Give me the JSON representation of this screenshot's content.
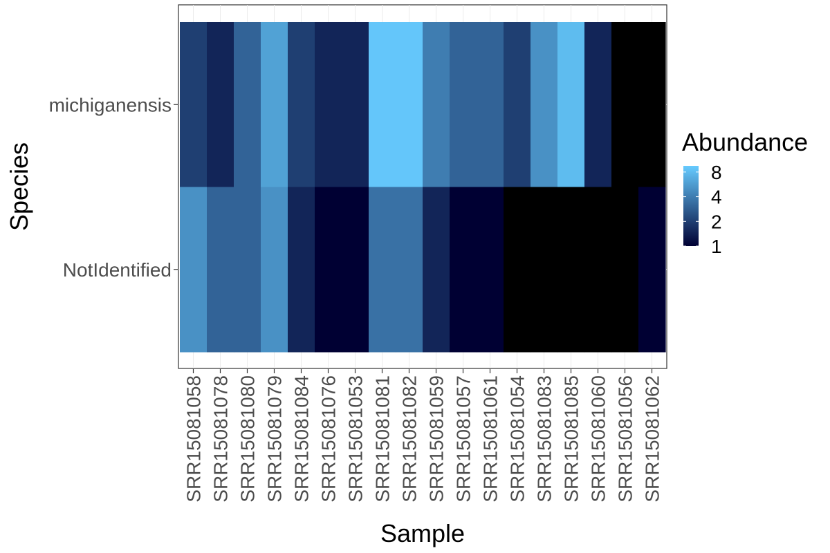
{
  "chart_data": {
    "type": "heatmap",
    "xlabel": "Sample",
    "ylabel": "Species",
    "x": [
      "SRR15081058",
      "SRR15081078",
      "SRR15081080",
      "SRR15081079",
      "SRR15081084",
      "SRR15081076",
      "SRR15081053",
      "SRR15081081",
      "SRR15081082",
      "SRR15081059",
      "SRR15081057",
      "SRR15081061",
      "SRR15081054",
      "SRR15081083",
      "SRR15081085",
      "SRR15081060",
      "SRR15081056",
      "SRR15081062"
    ],
    "y": [
      "michiganensis",
      "NotIdentified"
    ],
    "values": [
      [
        2,
        1.5,
        3,
        6,
        2,
        1.5,
        1.5,
        9,
        9,
        4,
        3,
        3,
        2,
        5,
        8,
        1.5,
        null,
        null
      ],
      [
        5,
        3,
        3,
        5,
        1.5,
        1,
        1,
        3.5,
        3.5,
        1.5,
        1,
        1,
        null,
        null,
        null,
        null,
        null,
        1
      ]
    ],
    "color_scale": {
      "low": "#000033",
      "high": "#66cbff",
      "missing": "#000000",
      "transform": "log"
    },
    "legend": {
      "title": "Abundance",
      "ticks": [
        8,
        4,
        2,
        1
      ],
      "position": "right"
    },
    "grid": true
  }
}
